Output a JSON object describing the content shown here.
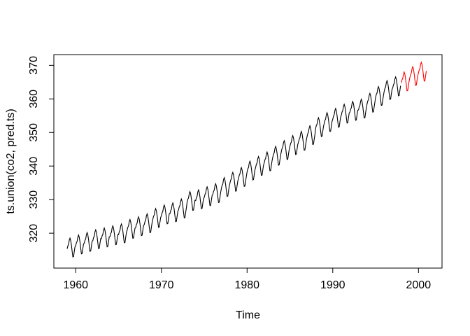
{
  "figure": {
    "background": "#ffffff",
    "foreground": "#000000"
  },
  "chart_data": {
    "type": "line",
    "title": "",
    "xlabel": "Time",
    "ylabel": "ts.union(co2, pred.ts)",
    "x_ticks": [
      1960,
      1970,
      1980,
      1990,
      2000
    ],
    "y_ticks": [
      320,
      330,
      340,
      350,
      360,
      370
    ],
    "xlim": [
      1957.45,
      2002.75
    ],
    "ylim": [
      309.6,
      373.2
    ],
    "grid": "off",
    "legend_position": "none",
    "frequency": 12,
    "seasonal_offsets": [
      -0.5,
      0.4,
      0.8,
      2.1,
      2.7,
      2.0,
      0.6,
      -1.2,
      -2.9,
      -2.8,
      -1.3,
      0.1
    ],
    "series": [
      {
        "name": "co2",
        "color": "#000000",
        "start_year": 1959,
        "end_year": 1997,
        "annual_means": [
          315.83,
          316.75,
          317.49,
          318.3,
          318.83,
          319.48,
          320.04,
          321.37,
          322.18,
          323.05,
          324.62,
          325.68,
          326.32,
          327.46,
          329.68,
          330.19,
          331.12,
          332.03,
          333.84,
          335.41,
          336.84,
          338.76,
          340.12,
          341.48,
          343.15,
          344.85,
          346.35,
          347.61,
          349.31,
          351.69,
          353.2,
          354.45,
          355.7,
          356.54,
          357.21,
          358.96,
          360.97,
          362.74,
          363.82
        ]
      },
      {
        "name": "pred.ts",
        "color": "#FF0000",
        "start_year": 1998,
        "end_year": 2000,
        "annual_means": [
          365.3,
          366.9,
          368.2
        ]
      }
    ]
  }
}
